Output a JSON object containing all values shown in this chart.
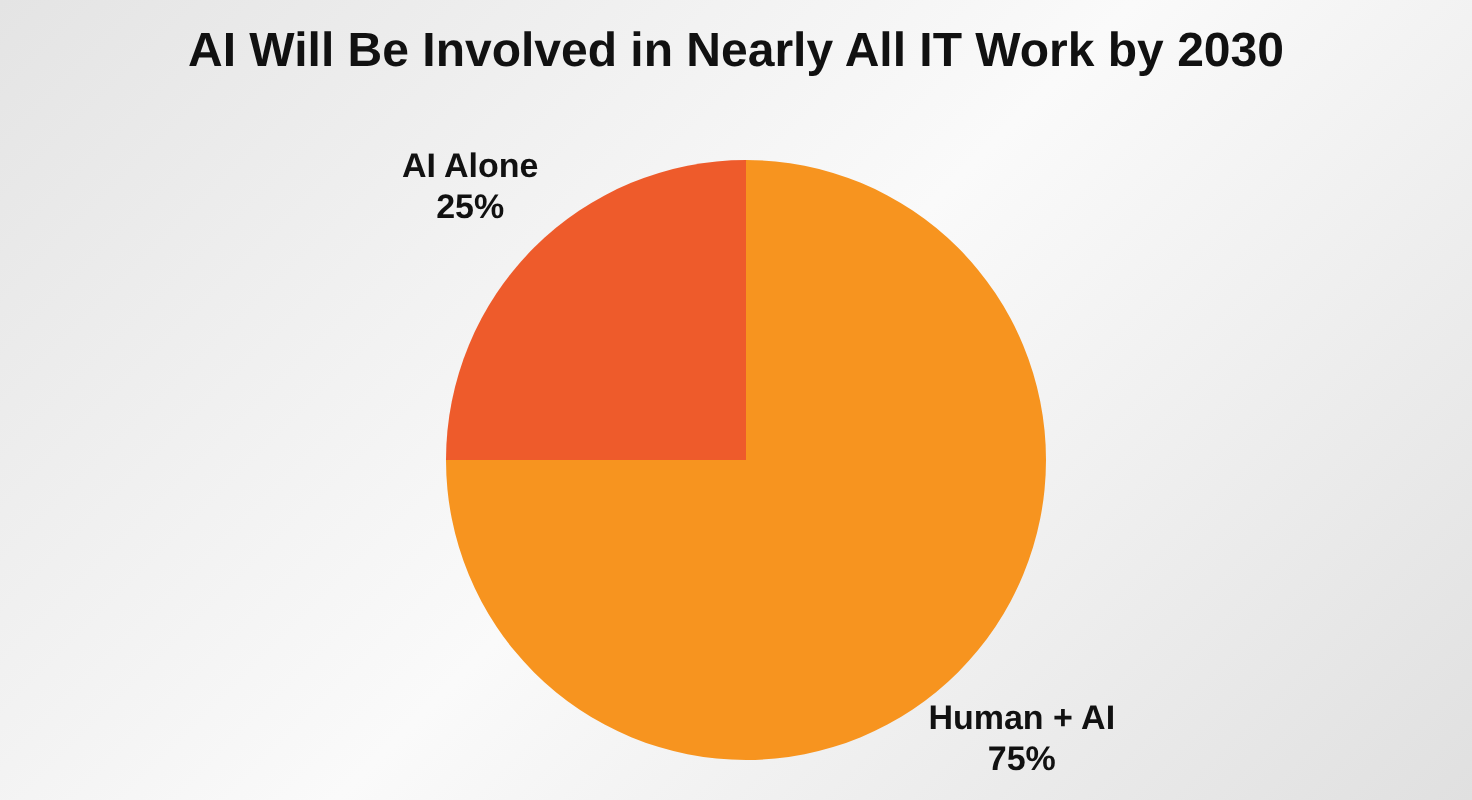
{
  "chart_data": {
    "type": "pie",
    "title": "AI Will Be Involved in Nearly All IT Work by 2030",
    "categories": [
      "AI Alone",
      "Human + AI"
    ],
    "values": [
      25,
      75
    ],
    "value_labels": [
      "25%",
      "75%"
    ],
    "colors": [
      "#ee5b2b",
      "#f7941f"
    ],
    "legend": false
  }
}
